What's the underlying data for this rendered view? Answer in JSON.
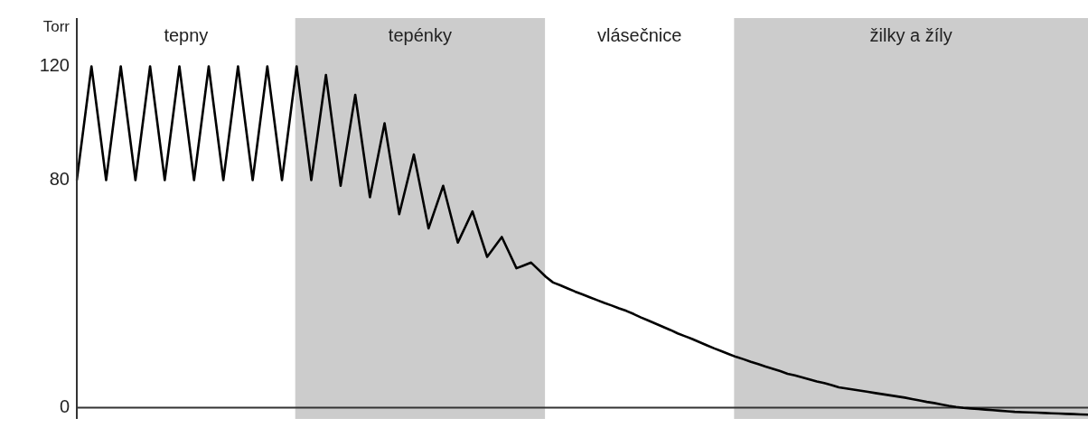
{
  "chart_data": {
    "type": "line",
    "ylabel": "Torr",
    "ylim": [
      -4,
      137
    ],
    "yticks": [
      0,
      80,
      120
    ],
    "tick_labels": "y",
    "grid": false,
    "legend": false,
    "marker": "none",
    "line_style": "solid",
    "annotations": [
      "tepny",
      "tepénky",
      "vlásečnice",
      "žilky a žíly"
    ],
    "categories": [
      null,
      null,
      null,
      null,
      null,
      null,
      null,
      null,
      null,
      null,
      null,
      null,
      null,
      null,
      null,
      null,
      null,
      null,
      null,
      null,
      null,
      null,
      null,
      null,
      null,
      null,
      null,
      null,
      null,
      null,
      null,
      null,
      null,
      null,
      null,
      null,
      null,
      null,
      null,
      null,
      null,
      null,
      null,
      null,
      null,
      null,
      null,
      null,
      null,
      null,
      null,
      null,
      null,
      null,
      null,
      null,
      null,
      null,
      null,
      null,
      null,
      null,
      null,
      null,
      null,
      null,
      null,
      null,
      null,
      null,
      null,
      null,
      null,
      null,
      null,
      null,
      null,
      null,
      null,
      null,
      null,
      null,
      null,
      null,
      null,
      null,
      null,
      null,
      null,
      null,
      null,
      null,
      null,
      null,
      null,
      null,
      null,
      null,
      null,
      null,
      null,
      null,
      null,
      null,
      null,
      null,
      null,
      null,
      null,
      null,
      null,
      null,
      null,
      null,
      null,
      null,
      null,
      null,
      null,
      null,
      null,
      null,
      null,
      null,
      null,
      null,
      null,
      null,
      null,
      null,
      null,
      null,
      null,
      null,
      null,
      null,
      null,
      null,
      null
    ],
    "ref_lines": [
      {
        "axis": "y",
        "value": 0,
        "color": "#333333"
      }
    ],
    "series": [
      {
        "color": "#000000",
        "values": [
          80,
          100,
          120,
          100,
          80,
          100,
          120,
          100,
          80,
          100,
          120,
          100,
          80,
          100,
          120,
          100,
          80,
          100,
          120,
          100,
          80,
          100,
          120,
          100,
          80,
          100,
          120,
          100,
          80,
          100,
          120,
          100,
          80,
          98.5,
          117,
          97.5,
          78,
          94,
          110,
          92,
          74,
          87,
          100,
          84,
          68,
          78.5,
          89,
          76,
          63,
          70.5,
          78,
          68,
          58,
          63.5,
          69,
          61,
          53,
          56.5,
          60,
          54.5,
          49,
          50,
          51,
          48.5,
          46,
          44.0,
          43.0,
          41.9,
          40.8,
          39.8,
          38.8,
          37.8,
          36.8,
          35.9,
          34.9,
          34.0,
          32.9,
          31.7,
          30.6,
          29.5,
          28.4,
          27.3,
          26.1,
          25.1,
          24.1,
          23.0,
          21.9,
          20.8,
          19.8,
          18.8,
          17.8,
          17.0,
          16.1,
          15.3,
          14.4,
          13.6,
          12.8,
          11.9,
          11.3,
          10.6,
          9.9,
          9.2,
          8.6,
          7.9,
          7.1,
          6.7,
          6.3,
          5.9,
          5.5,
          5.1,
          4.7,
          4.3,
          3.9,
          3.5,
          3.0,
          2.5,
          2.0,
          1.6,
          1.1,
          0.6,
          0.2,
          -0.1,
          -0.3,
          -0.5,
          -0.7,
          -0.9,
          -1.1,
          -1.3,
          -1.5,
          -1.6,
          -1.7,
          -1.8,
          -1.9,
          -2.0,
          -2.1,
          -2.2,
          -2.3,
          -2.4,
          -2.5
        ]
      }
    ]
  }
}
